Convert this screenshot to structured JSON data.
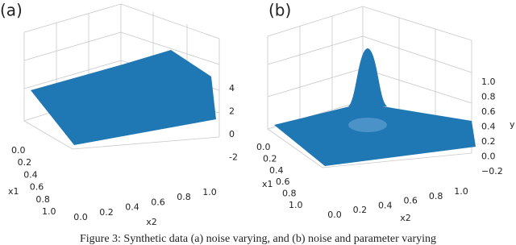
{
  "panels": [
    {
      "label": "(a)",
      "z_ticks": [
        "4",
        "2",
        "0",
        "-2"
      ],
      "x1_ticks": [
        "0.0",
        "0.2",
        "0.4",
        "0.6",
        "0.8",
        "1.0"
      ],
      "x1_label": "x1",
      "x2_ticks": [
        "0.0",
        "0.2",
        "0.4",
        "0.6",
        "0.8",
        "1.0"
      ],
      "x2_label": "x2"
    },
    {
      "label": "(b)",
      "z_ticks": [
        "1.0",
        "0.8",
        "0.6",
        "0.4",
        "0.2",
        "0.0",
        "−0.2"
      ],
      "z_label": "y",
      "x1_ticks": [
        "0.0",
        "0.2",
        "0.4",
        "0.6",
        "0.8",
        "1.0"
      ],
      "x1_label": "x1",
      "x2_ticks": [
        "0.0",
        "0.2",
        "0.4",
        "0.6",
        "0.8",
        "1.0"
      ],
      "x2_label": "x2"
    }
  ],
  "caption": "Figure 3: Synthetic data (a) noise varying, and (b) noise and parameter varying"
}
